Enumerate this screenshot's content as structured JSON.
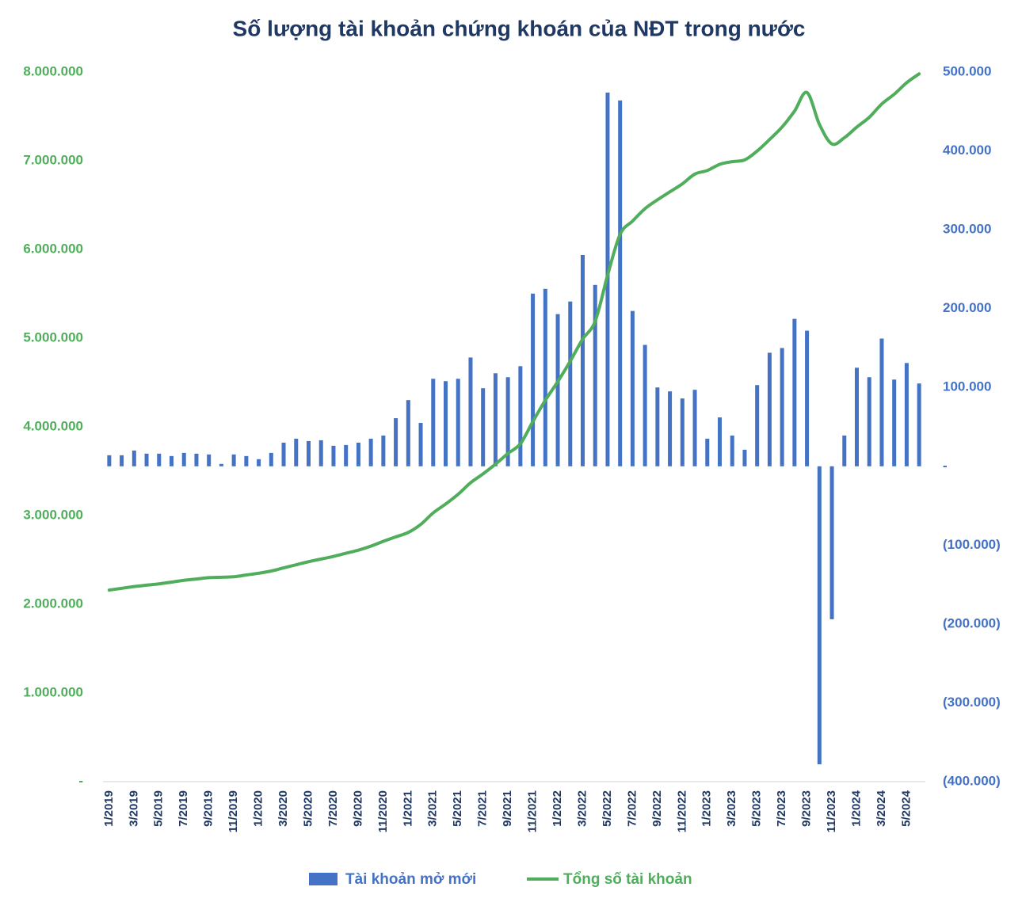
{
  "chart_data": {
    "type": "bar-line",
    "title": "Số lượng tài khoản chứng khoán của NĐT trong nước",
    "categories": [
      "1/2019",
      null,
      "3/2019",
      null,
      "5/2019",
      null,
      "7/2019",
      null,
      "9/2019",
      null,
      "11/2019",
      null,
      "1/2020",
      null,
      "3/2020",
      null,
      "5/2020",
      null,
      "7/2020",
      null,
      "9/2020",
      null,
      "11/2020",
      null,
      "1/2021",
      null,
      "3/2021",
      null,
      "5/2021",
      null,
      "7/2021",
      null,
      "9/2021",
      null,
      "11/2021",
      null,
      "1/2022",
      null,
      "3/2022",
      null,
      "5/2022",
      null,
      "7/2022",
      null,
      "9/2022",
      null,
      "11/2022",
      null,
      "1/2023",
      null,
      "3/2023",
      null,
      "5/2023",
      null,
      "7/2023",
      null,
      "9/2023",
      null,
      "11/2023",
      null,
      "1/2024",
      null,
      "3/2024",
      null,
      "5/2024",
      null
    ],
    "series": [
      {
        "name": "Tài khoản mở mới",
        "color": "#4472c4",
        "axis": "y2",
        "kind": "bar",
        "values": [
          14000,
          14000,
          20000,
          16000,
          16000,
          13000,
          17000,
          16000,
          15000,
          3000,
          15000,
          13000,
          9000,
          17000,
          30000,
          35000,
          32000,
          33000,
          26000,
          27000,
          30000,
          35000,
          39000,
          61000,
          84000,
          55000,
          111000,
          108000,
          111000,
          138000,
          99000,
          118000,
          113000,
          127000,
          219000,
          225000,
          193000,
          209000,
          268000,
          230000,
          474000,
          464000,
          197000,
          154000,
          100000,
          95000,
          86000,
          97000,
          35000,
          62000,
          39000,
          21000,
          103000,
          144000,
          150000,
          187000,
          172000,
          -378000,
          -194000,
          39000,
          125000,
          113000,
          162000,
          110000,
          131000,
          105000
        ]
      },
      {
        "name": "Tổng số tài khoản",
        "color": "#4fad5b",
        "axis": "y",
        "kind": "line",
        "values": [
          2160000,
          2180000,
          2200000,
          2215000,
          2230000,
          2250000,
          2270000,
          2285000,
          2300000,
          2305000,
          2310000,
          2330000,
          2350000,
          2375000,
          2410000,
          2445000,
          2480000,
          2510000,
          2540000,
          2575000,
          2610000,
          2655000,
          2710000,
          2760000,
          2810000,
          2900000,
          3030000,
          3130000,
          3240000,
          3370000,
          3470000,
          3580000,
          3700000,
          3810000,
          4060000,
          4300000,
          4510000,
          4740000,
          4990000,
          5190000,
          5710000,
          6170000,
          6320000,
          6460000,
          6560000,
          6650000,
          6740000,
          6850000,
          6890000,
          6960000,
          6990000,
          7010000,
          7110000,
          7240000,
          7380000,
          7560000,
          7770000,
          7410000,
          7190000,
          7260000,
          7380000,
          7490000,
          7640000,
          7750000,
          7880000,
          7980000
        ]
      }
    ],
    "ylim": [
      0,
      8000000
    ],
    "yticks": [
      {
        "value": 0,
        "label": "-"
      },
      {
        "value": 1000000,
        "label": "1.000.000"
      },
      {
        "value": 2000000,
        "label": "2.000.000"
      },
      {
        "value": 3000000,
        "label": "3.000.000"
      },
      {
        "value": 4000000,
        "label": "4.000.000"
      },
      {
        "value": 5000000,
        "label": "5.000.000"
      },
      {
        "value": 6000000,
        "label": "6.000.000"
      },
      {
        "value": 7000000,
        "label": "7.000.000"
      },
      {
        "value": 8000000,
        "label": "8.000.000"
      }
    ],
    "y2lim": [
      -400000,
      500000
    ],
    "y2ticks": [
      {
        "value": -400000,
        "label": "(400.000)"
      },
      {
        "value": -300000,
        "label": "(300.000)"
      },
      {
        "value": -200000,
        "label": "(200.000)"
      },
      {
        "value": -100000,
        "label": "(100.000)"
      },
      {
        "value": 0,
        "label": "-"
      },
      {
        "value": 100000,
        "label": "100.000"
      },
      {
        "value": 200000,
        "label": "200.000"
      },
      {
        "value": 300000,
        "label": "300.000"
      },
      {
        "value": 400000,
        "label": "400.000"
      },
      {
        "value": 500000,
        "label": "500.000"
      }
    ],
    "legend": "bottom"
  }
}
